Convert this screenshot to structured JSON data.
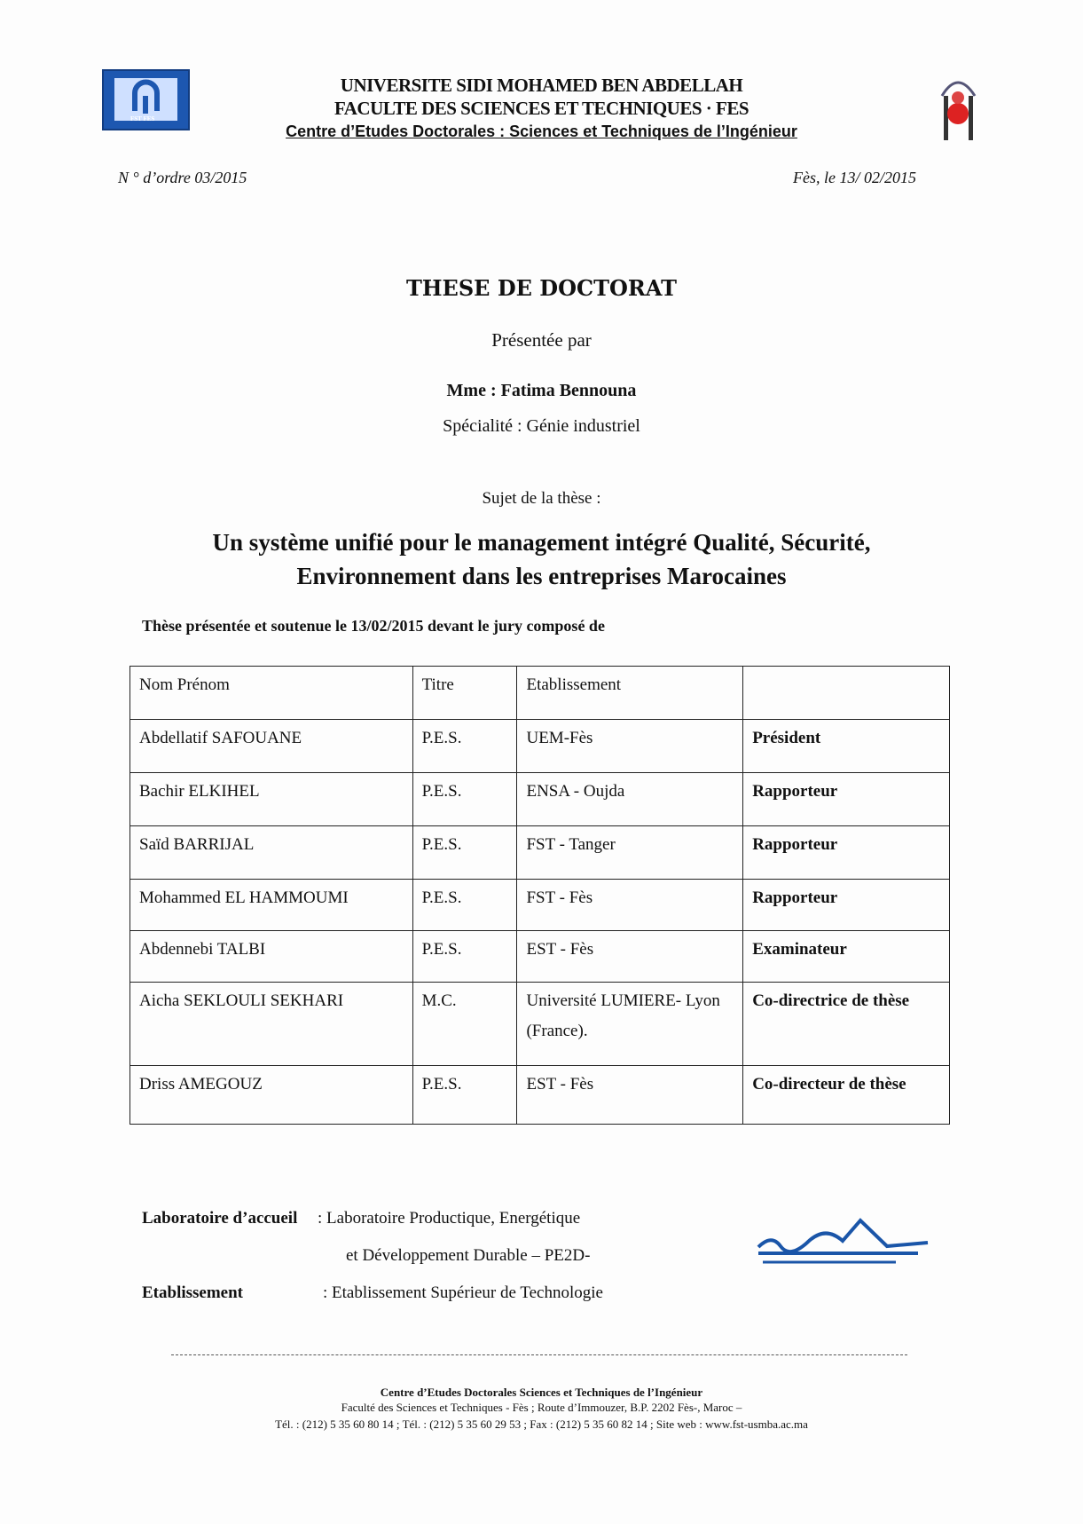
{
  "header": {
    "line1": "UNIVERSITE SIDI MOHAMED BEN ABDELLAH",
    "line2": "FACULTE DES SCIENCES ET TECHNIQUES · FES",
    "line3": "Centre d’Etudes Doctorales : Sciences et Techniques de l’Ingénieur",
    "logo_left_text": "FST FES",
    "accent": "#1a4fa0"
  },
  "meta": {
    "order": "N  ° d’ordre  03/2015",
    "date": "Fès, le 13/ 02/2015"
  },
  "title": "THESE DE DOCTORAT",
  "presented_by": "Présentée par",
  "candidate": "Mme : Fatima Bennouna",
  "speciality": "Spécialité : Génie industriel",
  "subject_label": "Sujet de la thèse :",
  "subject_line1": "Un système unifié pour le management intégré Qualité, Sécurité,",
  "subject_line2": "Environnement dans les entreprises Marocaines",
  "jury_intro": "Thèse présentée et soutenue le 13/02/2015 devant le jury composé de",
  "jury": {
    "headers": [
      "Nom Prénom",
      "Titre",
      "Etablissement",
      ""
    ],
    "rows": [
      [
        "Abdellatif SAFOUANE",
        "P.E.S.",
        "UEM-Fès",
        "Président"
      ],
      [
        "Bachir ELKIHEL",
        "P.E.S.",
        "ENSA - Oujda",
        "Rapporteur"
      ],
      [
        "Saïd BARRIJAL",
        "P.E.S.",
        "FST - Tanger",
        "Rapporteur"
      ],
      [
        "Mohammed EL HAMMOUMI",
        "P.E.S.",
        "FST - Fès",
        "Rapporteur"
      ],
      [
        "Abdennebi TALBI",
        "P.E.S.",
        "EST - Fès",
        "Examinateur"
      ],
      [
        "Aicha SEKLOULI SEKHARI",
        "M.C.",
        "Université LUMIERE- Lyon (France).",
        "Co-directrice de thèse"
      ],
      [
        "Driss AMEGOUZ",
        "P.E.S.",
        "EST - Fès",
        "Co-directeur de thèse"
      ]
    ]
  },
  "lab": {
    "label": "Laboratoire d’accueil",
    "value1": ": Laboratoire Productique, Energétique",
    "value2": "et Développement Durable – PE2D-"
  },
  "establishment": {
    "label": "Etablissement",
    "value": ": Etablissement Supérieur de Technologie"
  },
  "footer": {
    "line1": "Centre d’Etudes Doctorales Sciences et Techniques de l’Ingénieur",
    "line2": "Faculté des Sciences et Techniques - Fès ; Route d’Immouzer, B.P. 2202 Fès-, Maroc –",
    "line3": "Tél. : (212) 5 35 60 80 14 ; Tél. : (212) 5 35 60 29 53 ;   Fax : (212) 5 35 60 82  14 ;   Site web : www.fst-usmba.ac.ma"
  }
}
